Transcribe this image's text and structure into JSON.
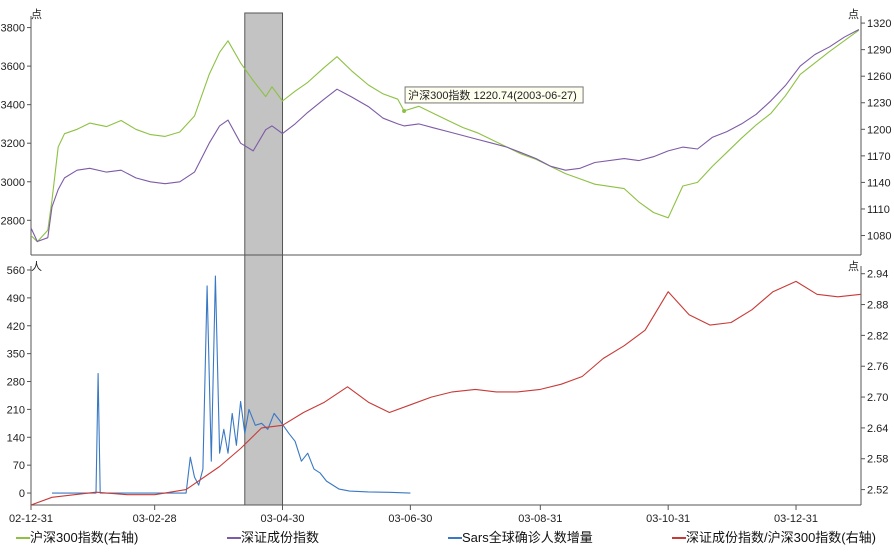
{
  "chart_data": {
    "type": "line",
    "x_ticks": [
      "02-12-31",
      "03-02-28",
      "03-04-30",
      "03-06-30",
      "03-08-31",
      "03-10-31",
      "03-12-31"
    ],
    "top_panel": {
      "left_unit": "点",
      "right_unit": "点",
      "left_ticks": [
        2800,
        3000,
        3200,
        3400,
        3600,
        3800
      ],
      "right_ticks": [
        1080,
        1110,
        1140,
        1170,
        1200,
        1230,
        1260,
        1290,
        1320
      ],
      "left_range": [
        2620,
        3860
      ],
      "right_range": [
        1058,
        1328
      ],
      "series": [
        {
          "name": "沪深300指数(右轴)",
          "axis": "right",
          "color": "#8dc143",
          "points": [
            [
              "2002-12-31",
              1080
            ],
            [
              "2003-01-03",
              1073
            ],
            [
              "2003-01-08",
              1086
            ],
            [
              "2003-01-10",
              1120
            ],
            [
              "2003-01-13",
              1180
            ],
            [
              "2003-01-16",
              1195
            ],
            [
              "2003-01-22",
              1200
            ],
            [
              "2003-01-28",
              1207
            ],
            [
              "2003-02-05",
              1203
            ],
            [
              "2003-02-12",
              1210
            ],
            [
              "2003-02-19",
              1200
            ],
            [
              "2003-02-26",
              1194
            ],
            [
              "2003-03-05",
              1192
            ],
            [
              "2003-03-12",
              1197
            ],
            [
              "2003-03-19",
              1215
            ],
            [
              "2003-03-26",
              1262
            ],
            [
              "2003-03-31",
              1287
            ],
            [
              "2003-04-04",
              1300
            ],
            [
              "2003-04-10",
              1275
            ],
            [
              "2003-04-16",
              1255
            ],
            [
              "2003-04-22",
              1237
            ],
            [
              "2003-04-25",
              1248
            ],
            [
              "2003-04-30",
              1232
            ],
            [
              "2003-05-06",
              1243
            ],
            [
              "2003-05-12",
              1253
            ],
            [
              "2003-05-20",
              1270
            ],
            [
              "2003-05-26",
              1282
            ],
            [
              "2003-06-02",
              1266
            ],
            [
              "2003-06-10",
              1250
            ],
            [
              "2003-06-17",
              1240
            ],
            [
              "2003-06-24",
              1234
            ],
            [
              "2003-06-27",
              1220.74
            ],
            [
              "2003-07-04",
              1226
            ],
            [
              "2003-07-11",
              1218
            ],
            [
              "2003-07-18",
              1210
            ],
            [
              "2003-07-25",
              1202
            ],
            [
              "2003-08-01",
              1196
            ],
            [
              "2003-08-08",
              1188
            ],
            [
              "2003-08-15",
              1180
            ],
            [
              "2003-08-22",
              1172
            ],
            [
              "2003-08-29",
              1166
            ],
            [
              "2003-09-05",
              1158
            ],
            [
              "2003-09-12",
              1150
            ],
            [
              "2003-09-19",
              1144
            ],
            [
              "2003-09-26",
              1138
            ],
            [
              "2003-10-10",
              1133
            ],
            [
              "2003-10-17",
              1118
            ],
            [
              "2003-10-24",
              1106
            ],
            [
              "2003-10-31",
              1100
            ],
            [
              "2003-11-07",
              1136
            ],
            [
              "2003-11-14",
              1140
            ],
            [
              "2003-11-21",
              1158
            ],
            [
              "2003-11-28",
              1174
            ],
            [
              "2003-12-05",
              1190
            ],
            [
              "2003-12-12",
              1205
            ],
            [
              "2003-12-19",
              1218
            ],
            [
              "2003-12-26",
              1238
            ],
            [
              "2004-01-02",
              1262
            ],
            [
              "2004-01-09",
              1275
            ],
            [
              "2004-01-16",
              1288
            ],
            [
              "2004-01-23",
              1300
            ],
            [
              "2004-01-30",
              1312
            ]
          ]
        },
        {
          "name": "深证成份指数",
          "axis": "left",
          "color": "#7d5ba6",
          "points": [
            [
              "2002-12-31",
              2760
            ],
            [
              "2003-01-03",
              2690
            ],
            [
              "2003-01-08",
              2710
            ],
            [
              "2003-01-10",
              2870
            ],
            [
              "2003-01-13",
              2960
            ],
            [
              "2003-01-16",
              3020
            ],
            [
              "2003-01-22",
              3060
            ],
            [
              "2003-01-28",
              3070
            ],
            [
              "2003-02-05",
              3050
            ],
            [
              "2003-02-12",
              3060
            ],
            [
              "2003-02-19",
              3020
            ],
            [
              "2003-02-26",
              3000
            ],
            [
              "2003-03-05",
              2990
            ],
            [
              "2003-03-12",
              3000
            ],
            [
              "2003-03-19",
              3050
            ],
            [
              "2003-03-26",
              3200
            ],
            [
              "2003-03-31",
              3290
            ],
            [
              "2003-04-04",
              3320
            ],
            [
              "2003-04-10",
              3200
            ],
            [
              "2003-04-16",
              3160
            ],
            [
              "2003-04-22",
              3270
            ],
            [
              "2003-04-25",
              3290
            ],
            [
              "2003-04-30",
              3250
            ],
            [
              "2003-05-06",
              3300
            ],
            [
              "2003-05-12",
              3360
            ],
            [
              "2003-05-20",
              3430
            ],
            [
              "2003-05-26",
              3480
            ],
            [
              "2003-06-02",
              3440
            ],
            [
              "2003-06-10",
              3390
            ],
            [
              "2003-06-17",
              3330
            ],
            [
              "2003-06-24",
              3300
            ],
            [
              "2003-06-27",
              3290
            ],
            [
              "2003-07-04",
              3300
            ],
            [
              "2003-07-11",
              3280
            ],
            [
              "2003-07-18",
              3260
            ],
            [
              "2003-07-25",
              3240
            ],
            [
              "2003-08-01",
              3220
            ],
            [
              "2003-08-08",
              3200
            ],
            [
              "2003-08-15",
              3180
            ],
            [
              "2003-08-22",
              3150
            ],
            [
              "2003-08-29",
              3120
            ],
            [
              "2003-09-05",
              3080
            ],
            [
              "2003-09-12",
              3060
            ],
            [
              "2003-09-19",
              3070
            ],
            [
              "2003-09-26",
              3100
            ],
            [
              "2003-10-10",
              3120
            ],
            [
              "2003-10-17",
              3110
            ],
            [
              "2003-10-24",
              3130
            ],
            [
              "2003-10-31",
              3160
            ],
            [
              "2003-11-07",
              3180
            ],
            [
              "2003-11-14",
              3170
            ],
            [
              "2003-11-21",
              3230
            ],
            [
              "2003-11-28",
              3260
            ],
            [
              "2003-12-05",
              3300
            ],
            [
              "2003-12-12",
              3350
            ],
            [
              "2003-12-19",
              3420
            ],
            [
              "2003-12-26",
              3500
            ],
            [
              "2004-01-02",
              3600
            ],
            [
              "2004-01-09",
              3660
            ],
            [
              "2004-01-16",
              3700
            ],
            [
              "2004-01-23",
              3750
            ],
            [
              "2004-01-30",
              3790
            ]
          ]
        }
      ],
      "tooltip": {
        "text": "沪深300指数 1220.74(2003-06-27)",
        "date": "2003-06-27",
        "value": 1220.74
      }
    },
    "bottom_panel": {
      "left_unit": "人",
      "right_unit": "点",
      "left_ticks": [
        0,
        70,
        140,
        210,
        280,
        350,
        420,
        490,
        560
      ],
      "right_ticks": [
        2.52,
        2.58,
        2.64,
        2.7,
        2.76,
        2.82,
        2.88,
        2.94
      ],
      "left_range": [
        -30,
        570
      ],
      "right_range": [
        2.49,
        2.955
      ],
      "series": [
        {
          "name": "Sars全球确诊人数增量",
          "axis": "left",
          "color": "#3a78c4",
          "points": [
            [
              "2003-01-10",
              0
            ],
            [
              "2003-01-31",
              0
            ],
            [
              "2003-02-01",
              300
            ],
            [
              "2003-02-02",
              0
            ],
            [
              "2003-02-20",
              0
            ],
            [
              "2003-03-15",
              0
            ],
            [
              "2003-03-17",
              90
            ],
            [
              "2003-03-19",
              40
            ],
            [
              "2003-03-21",
              20
            ],
            [
              "2003-03-23",
              60
            ],
            [
              "2003-03-25",
              520
            ],
            [
              "2003-03-27",
              80
            ],
            [
              "2003-03-29",
              545
            ],
            [
              "2003-03-31",
              100
            ],
            [
              "2003-04-02",
              160
            ],
            [
              "2003-04-04",
              100
            ],
            [
              "2003-04-06",
              200
            ],
            [
              "2003-04-08",
              120
            ],
            [
              "2003-04-10",
              230
            ],
            [
              "2003-04-12",
              150
            ],
            [
              "2003-04-14",
              210
            ],
            [
              "2003-04-17",
              170
            ],
            [
              "2003-04-20",
              175
            ],
            [
              "2003-04-23",
              160
            ],
            [
              "2003-04-26",
              200
            ],
            [
              "2003-04-29",
              180
            ],
            [
              "2003-05-03",
              150
            ],
            [
              "2003-05-06",
              130
            ],
            [
              "2003-05-09",
              80
            ],
            [
              "2003-05-12",
              100
            ],
            [
              "2003-05-15",
              60
            ],
            [
              "2003-05-18",
              50
            ],
            [
              "2003-05-21",
              30
            ],
            [
              "2003-05-24",
              20
            ],
            [
              "2003-05-27",
              10
            ],
            [
              "2003-06-01",
              5
            ],
            [
              "2003-06-10",
              3
            ],
            [
              "2003-06-20",
              2
            ],
            [
              "2003-06-30",
              0
            ]
          ]
        },
        {
          "name": "深证成份指数/沪深300指数(右轴)",
          "axis": "right",
          "color": "#c83a37",
          "points": [
            [
              "2002-12-31",
              2.49
            ],
            [
              "2003-01-10",
              2.505
            ],
            [
              "2003-01-31",
              2.515
            ],
            [
              "2003-02-15",
              2.51
            ],
            [
              "2003-02-28",
              2.51
            ],
            [
              "2003-03-15",
              2.52
            ],
            [
              "2003-03-31",
              2.565
            ],
            [
              "2003-04-10",
              2.6
            ],
            [
              "2003-04-20",
              2.64
            ],
            [
              "2003-04-30",
              2.645
            ],
            [
              "2003-05-10",
              2.67
            ],
            [
              "2003-05-20",
              2.69
            ],
            [
              "2003-05-31",
              2.72
            ],
            [
              "2003-06-10",
              2.69
            ],
            [
              "2003-06-20",
              2.67
            ],
            [
              "2003-06-30",
              2.685
            ],
            [
              "2003-07-10",
              2.7
            ],
            [
              "2003-07-20",
              2.71
            ],
            [
              "2003-07-31",
              2.715
            ],
            [
              "2003-08-10",
              2.71
            ],
            [
              "2003-08-20",
              2.71
            ],
            [
              "2003-08-31",
              2.715
            ],
            [
              "2003-09-10",
              2.725
            ],
            [
              "2003-09-20",
              2.74
            ],
            [
              "2003-09-30",
              2.775
            ],
            [
              "2003-10-10",
              2.8
            ],
            [
              "2003-10-20",
              2.83
            ],
            [
              "2003-10-31",
              2.905
            ],
            [
              "2003-11-10",
              2.86
            ],
            [
              "2003-11-20",
              2.84
            ],
            [
              "2003-11-30",
              2.845
            ],
            [
              "2003-12-10",
              2.87
            ],
            [
              "2003-12-20",
              2.905
            ],
            [
              "2003-12-31",
              2.925
            ],
            [
              "2004-01-10",
              2.9
            ],
            [
              "2004-01-20",
              2.895
            ],
            [
              "2004-01-31",
              2.9
            ]
          ]
        }
      ]
    },
    "highlight_band": {
      "start": "2003-04-12",
      "end": "2003-04-30"
    },
    "legend": [
      {
        "label": "沪深300指数(右轴)",
        "color": "#8dc143"
      },
      {
        "label": "深证成份指数",
        "color": "#7d5ba6"
      },
      {
        "label": "Sars全球确诊人数增量",
        "color": "#3a78c4"
      },
      {
        "label": "深证成份指数/沪深300指数(右轴)",
        "color": "#c83a37"
      }
    ]
  }
}
